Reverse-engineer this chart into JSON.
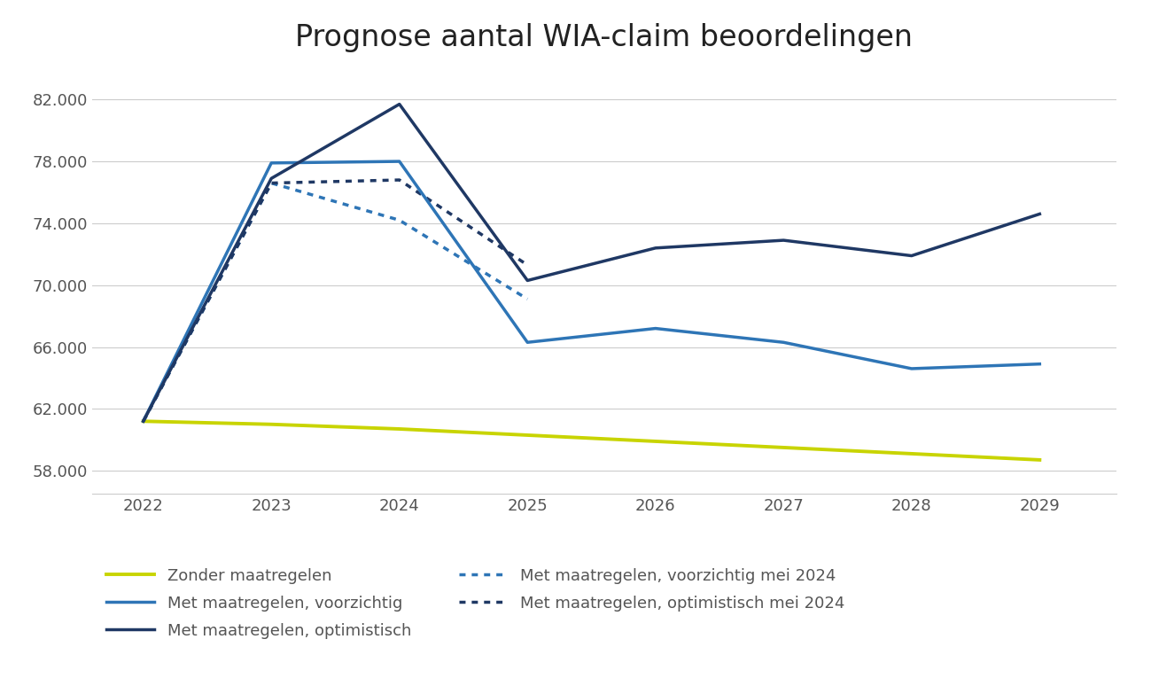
{
  "title": "Prognose aantal WIA-claim beoordelingen",
  "years": [
    2022,
    2023,
    2024,
    2025,
    2026,
    2027,
    2028,
    2029
  ],
  "zonder_maatregelen": [
    61200,
    61000,
    60700,
    60300,
    59900,
    59500,
    59100,
    58700
  ],
  "voorzichtig": [
    61200,
    77900,
    78000,
    66300,
    67200,
    66300,
    64600,
    64900
  ],
  "optimistisch": [
    61200,
    76900,
    81700,
    70300,
    72400,
    72900,
    71900,
    74600
  ],
  "voorzichtig_mei2024": [
    61200,
    76600,
    74200,
    69100
  ],
  "optimistisch_mei2024": [
    61200,
    76600,
    76800,
    71300
  ],
  "color_zonder": "#c8d400",
  "color_voorzichtig": "#2e75b6",
  "color_optimistisch": "#1f3864",
  "color_voorzichtig_dotted": "#2e75b6",
  "color_optimistisch_dotted": "#1f3864",
  "ylim_min": 56500,
  "ylim_max": 84000,
  "yticks": [
    58000,
    62000,
    66000,
    70000,
    74000,
    78000,
    82000
  ],
  "legend_labels": [
    "Zonder maatregelen",
    "Met maatregelen, voorzichtig",
    "Met maatregelen, optimistisch",
    "Met maatregelen, voorzichtig mei 2024",
    "Met maatregelen, optimistisch mei 2024"
  ],
  "background_color": "#ffffff",
  "grid_color": "#cccccc",
  "tick_color": "#555555",
  "title_fontsize": 24,
  "tick_fontsize": 13,
  "legend_fontsize": 13
}
